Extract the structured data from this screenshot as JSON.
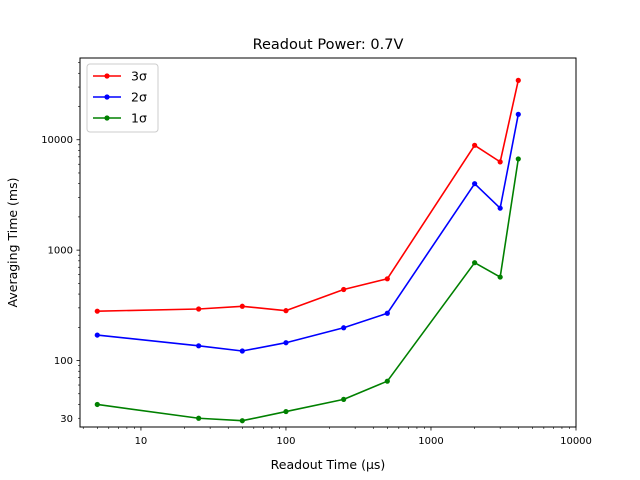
{
  "chart_data": {
    "type": "line",
    "title": "Readout Power: 0.7V",
    "xlabel": "Readout Time (μs)",
    "ylabel": "Averaging Time (ms)",
    "xscale": "log",
    "yscale": "log",
    "xlim": [
      3.8,
      10000
    ],
    "ylim": [
      25,
      55000
    ],
    "xticks": [
      10,
      100,
      1000,
      10000
    ],
    "xtick_labels": [
      "10",
      "100",
      "1000",
      "10000"
    ],
    "yticks": [
      30,
      100,
      1000,
      10000
    ],
    "ytick_labels": [
      "30",
      "100",
      "1000",
      "10000"
    ],
    "grid": false,
    "legend_position": "top-left",
    "x": [
      5,
      25,
      50,
      100,
      250,
      500,
      2000,
      3000,
      4000
    ],
    "series": [
      {
        "name": "3σ",
        "color": "#ff0000",
        "values": [
          280,
          293,
          310,
          283,
          440,
          550,
          8900,
          6300,
          34500
        ]
      },
      {
        "name": "2σ",
        "color": "#0000ff",
        "values": [
          170,
          136,
          122,
          145,
          198,
          268,
          4000,
          2400,
          17000
        ]
      },
      {
        "name": "1σ",
        "color": "#008000",
        "values": [
          40,
          30,
          28.5,
          34.5,
          44.5,
          65,
          770,
          570,
          6700
        ]
      }
    ]
  }
}
